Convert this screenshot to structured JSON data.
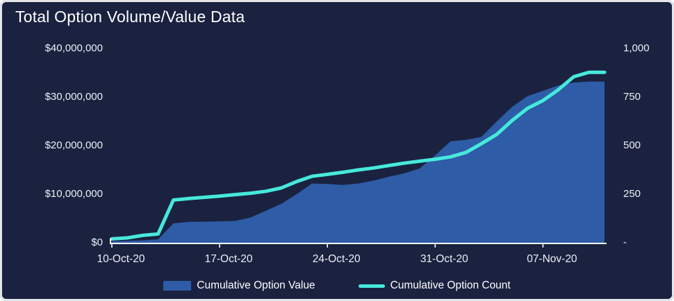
{
  "colors": {
    "background": "#1a2240",
    "border": "#e4e6ea",
    "text": "#eef0f5",
    "axis_line": "#ffffff",
    "value_area": "#2e5ca6",
    "count_line": "#47e9dc"
  },
  "chart_data": {
    "type": "area",
    "title": "Total Option Volume/Value Data",
    "categories": [
      "10-Oct-20",
      "11-Oct-20",
      "12-Oct-20",
      "13-Oct-20",
      "14-Oct-20",
      "15-Oct-20",
      "16-Oct-20",
      "17-Oct-20",
      "18-Oct-20",
      "19-Oct-20",
      "20-Oct-20",
      "21-Oct-20",
      "22-Oct-20",
      "23-Oct-20",
      "24-Oct-20",
      "25-Oct-20",
      "26-Oct-20",
      "27-Oct-20",
      "28-Oct-20",
      "29-Oct-20",
      "30-Oct-20",
      "31-Oct-20",
      "01-Nov-20",
      "02-Nov-20",
      "03-Nov-20",
      "04-Nov-20",
      "05-Nov-20",
      "06-Nov-20",
      "07-Nov-20",
      "08-Nov-20",
      "09-Nov-20",
      "10-Nov-20",
      "11-Nov-20"
    ],
    "series": [
      {
        "name": "Cumulative Option Value",
        "type": "area",
        "axis": "left",
        "color": "#2e5ca6",
        "values": [
          300000,
          400000,
          500000,
          700000,
          4000000,
          4300000,
          4350000,
          4400000,
          4500000,
          5200000,
          6600000,
          8000000,
          10000000,
          12200000,
          12100000,
          11900000,
          12200000,
          12800000,
          13600000,
          14300000,
          15300000,
          18000000,
          20900000,
          21200000,
          21800000,
          25000000,
          28000000,
          30200000,
          31300000,
          32400000,
          33000000,
          33200000,
          33200000
        ]
      },
      {
        "name": "Cumulative Option Count",
        "type": "line",
        "axis": "right",
        "color": "#47e9dc",
        "values": [
          20,
          25,
          38,
          45,
          220,
          228,
          234,
          240,
          248,
          255,
          265,
          282,
          315,
          342,
          352,
          363,
          375,
          385,
          398,
          410,
          420,
          430,
          442,
          465,
          510,
          558,
          630,
          692,
          732,
          788,
          855,
          878,
          878
        ]
      }
    ],
    "left_axis": {
      "min": 0,
      "max": 40000000,
      "tick_labels": [
        "$40,000,000",
        "$30,000,000",
        "$20,000,000",
        "$10,000,000",
        "$0"
      ]
    },
    "right_axis": {
      "min": 0,
      "max": 1000,
      "tick_labels": [
        "1,000",
        "750",
        "500",
        "250",
        "-"
      ]
    },
    "x_ticks": [
      "10-Oct-20",
      "17-Oct-20",
      "24-Oct-20",
      "31-Oct-20",
      "07-Nov-20"
    ],
    "grid": "off",
    "legend_position": "bottom"
  },
  "legend": {
    "items": [
      {
        "label": "Cumulative Option Value",
        "swatch": "rect",
        "color": "#2e5ca6"
      },
      {
        "label": "Cumulative Option Count",
        "swatch": "line",
        "color": "#47e9dc"
      }
    ]
  }
}
